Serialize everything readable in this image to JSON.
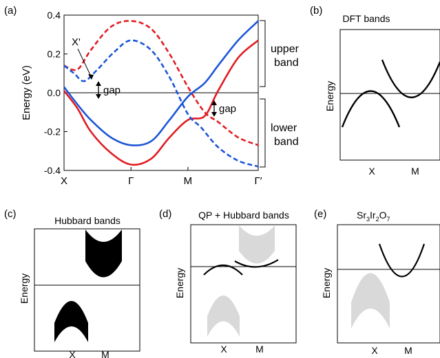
{
  "panels": {
    "a": {
      "letter": "(a)"
    },
    "b": {
      "letter": "(b)",
      "title": "DFT bands",
      "ylabel": "Energy",
      "xticks": [
        "X",
        "M"
      ]
    },
    "c": {
      "letter": "(c)",
      "title": "Hubbard bands",
      "ylabel": "Energy",
      "xticks": [
        "X",
        "M"
      ]
    },
    "d": {
      "letter": "(d)",
      "title": "QP + Hubbard bands",
      "ylabel": "Energy",
      "xticks": [
        "X",
        "M"
      ]
    },
    "e": {
      "letter": "(e)",
      "title_parts": [
        "Sr",
        "3",
        "Ir",
        "2",
        "O",
        "7"
      ],
      "ylabel": "Energy",
      "xticks": [
        "X",
        "M"
      ]
    }
  },
  "chart_data": [
    {
      "panel": "a",
      "type": "line",
      "ylabel": "Energy (eV)",
      "ylim": [
        -0.4,
        0.4
      ],
      "yticks": [
        "0.4",
        "0.2",
        "0.0",
        "-0.2",
        "-0.4"
      ],
      "xtick_labels": [
        "X",
        "Γ",
        "M",
        "Γ′"
      ],
      "annotations": {
        "xprime": "X'",
        "gap": "gap",
        "upper": [
          "upper",
          "band"
        ],
        "lower": [
          "lower",
          "band"
        ]
      },
      "colors": {
        "red": "#e01b22",
        "blue": "#1b55d6"
      },
      "series": [
        {
          "color": "red",
          "style": "dashed",
          "points": [
            [
              0,
              0.14
            ],
            [
              0.4,
              0.12
            ],
            [
              0.8,
              0.22
            ],
            [
              1.4,
              0.34
            ],
            [
              2.0,
              0.37
            ],
            [
              2.6,
              0.33
            ],
            [
              3.15,
              0.2
            ],
            [
              3.7,
              0.03
            ],
            [
              4.2,
              -0.1
            ],
            [
              4.6,
              -0.15
            ],
            [
              5.2,
              -0.23
            ],
            [
              5.8,
              -0.27
            ]
          ]
        },
        {
          "color": "red",
          "style": "solid",
          "points": [
            [
              0,
              0.01
            ],
            [
              0.4,
              -0.08
            ],
            [
              0.8,
              -0.2
            ],
            [
              1.4,
              -0.31
            ],
            [
              2.0,
              -0.37
            ],
            [
              2.6,
              -0.34
            ],
            [
              3.15,
              -0.23
            ],
            [
              3.7,
              -0.14
            ],
            [
              4.2,
              -0.12
            ],
            [
              4.6,
              0.01
            ],
            [
              5.2,
              0.18
            ],
            [
              5.8,
              0.27
            ]
          ]
        },
        {
          "color": "blue",
          "style": "dashed",
          "points": [
            [
              0,
              0.14
            ],
            [
              0.3,
              0.1
            ],
            [
              0.6,
              0.06
            ],
            [
              1.0,
              0.12
            ],
            [
              1.5,
              0.21
            ],
            [
              2.0,
              0.27
            ],
            [
              2.6,
              0.22
            ],
            [
              3.15,
              0.08
            ],
            [
              3.7,
              -0.11
            ],
            [
              4.1,
              -0.18
            ],
            [
              4.6,
              -0.28
            ],
            [
              5.2,
              -0.35
            ],
            [
              5.8,
              -0.38
            ]
          ]
        },
        {
          "color": "blue",
          "style": "solid",
          "points": [
            [
              0,
              0.03
            ],
            [
              0.4,
              -0.06
            ],
            [
              0.8,
              -0.14
            ],
            [
              1.4,
              -0.23
            ],
            [
              2.0,
              -0.27
            ],
            [
              2.6,
              -0.25
            ],
            [
              3.15,
              -0.14
            ],
            [
              3.7,
              -0.02
            ],
            [
              4.2,
              0.05
            ],
            [
              4.6,
              0.14
            ],
            [
              5.2,
              0.27
            ],
            [
              5.8,
              0.37
            ]
          ]
        }
      ]
    },
    {
      "panel": "b",
      "type": "line",
      "series": [
        {
          "name": "",
          "shape": "two parabolic DFT bands"
        }
      ]
    },
    {
      "panel": "c",
      "type": "area",
      "series": [
        {
          "name": "",
          "shape": "upper and lower Hubbard bands"
        }
      ]
    },
    {
      "panel": "d",
      "type": "area",
      "series": [
        {
          "name": "",
          "shape": "QP bands over grey Hubbard bands"
        }
      ]
    },
    {
      "panel": "e",
      "type": "area",
      "series": [
        {
          "name": "",
          "shape": "measured band plus grey lower band"
        }
      ]
    }
  ]
}
